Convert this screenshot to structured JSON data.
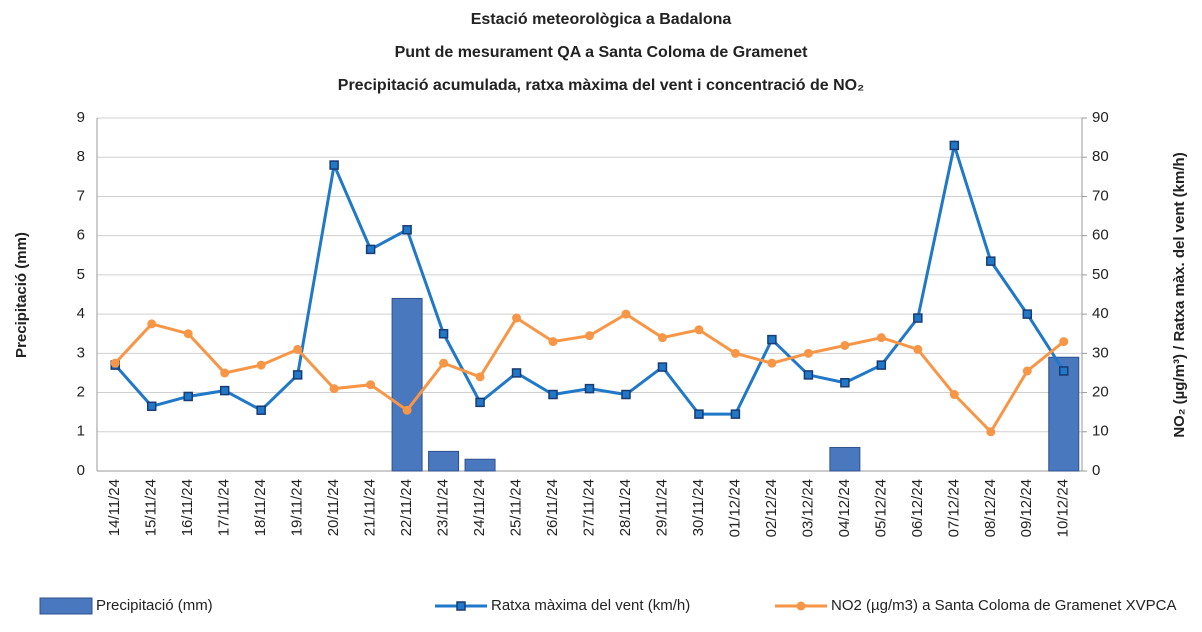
{
  "chart_data": {
    "type": "bar",
    "title": "Estació meteorològica a Badalona",
    "subtitle": "Punt de mesurament QA a Santa Coloma de Gramenet",
    "subtitle2": "Precipitació acumulada, ratxa màxima del vent i concentració de NO₂",
    "ylabel": "Precipitació (mm)",
    "y2label": "NO₂ (µg/m³) / Ratxa màx. del vent (km/h)",
    "categories": [
      "14/11/24",
      "15/11/24",
      "16/11/24",
      "17/11/24",
      "18/11/24",
      "19/11/24",
      "20/11/24",
      "21/11/24",
      "22/11/24",
      "23/11/24",
      "24/11/24",
      "25/11/24",
      "26/11/24",
      "27/11/24",
      "28/11/24",
      "29/11/24",
      "30/11/24",
      "01/12/24",
      "02/12/24",
      "03/12/24",
      "04/12/24",
      "05/12/24",
      "06/12/24",
      "07/12/24",
      "08/12/24",
      "09/12/24",
      "10/12/24"
    ],
    "series": [
      {
        "name": "Precipitació (mm)",
        "type": "bar",
        "color": "#4a78be",
        "values": [
          0,
          0,
          0,
          0,
          0,
          0,
          0,
          0,
          4.4,
          0.5,
          0.3,
          0,
          0,
          0,
          0,
          0,
          0,
          0,
          0,
          0,
          0.6,
          0,
          0,
          0,
          0,
          0,
          2.9
        ]
      },
      {
        "name": "Ratxa màxima del vent (km/h)",
        "type": "line",
        "marker": "square",
        "axis": "y2",
        "color": "#1f78c8",
        "values": [
          27,
          16.5,
          19,
          20.5,
          15.5,
          24.5,
          78,
          56.5,
          61.5,
          35,
          17.5,
          25,
          19.5,
          21,
          19.5,
          26.5,
          14.5,
          14.5,
          33.5,
          24.5,
          22.5,
          27,
          39,
          83,
          53.5,
          40,
          25.5
        ]
      },
      {
        "name": "NO2 (µg/m3) a Santa Coloma de Gramenet XVPCA",
        "type": "line",
        "marker": "circle",
        "axis": "y2",
        "color": "#f79646",
        "values": [
          27.5,
          37.5,
          35,
          25,
          27,
          31,
          21,
          22,
          15.5,
          27.5,
          24,
          39,
          33,
          34.5,
          40,
          34,
          36,
          30,
          27.5,
          30,
          32,
          34,
          31,
          19.5,
          10,
          25.5,
          33
        ]
      }
    ],
    "ylim": [
      0,
      9
    ],
    "yticks": [
      0,
      1,
      2,
      3,
      4,
      5,
      6,
      7,
      8,
      9
    ],
    "y2lim": [
      0,
      90
    ],
    "y2ticks": [
      0,
      10,
      20,
      30,
      40,
      50,
      60,
      70,
      80,
      90
    ],
    "grid": true
  }
}
